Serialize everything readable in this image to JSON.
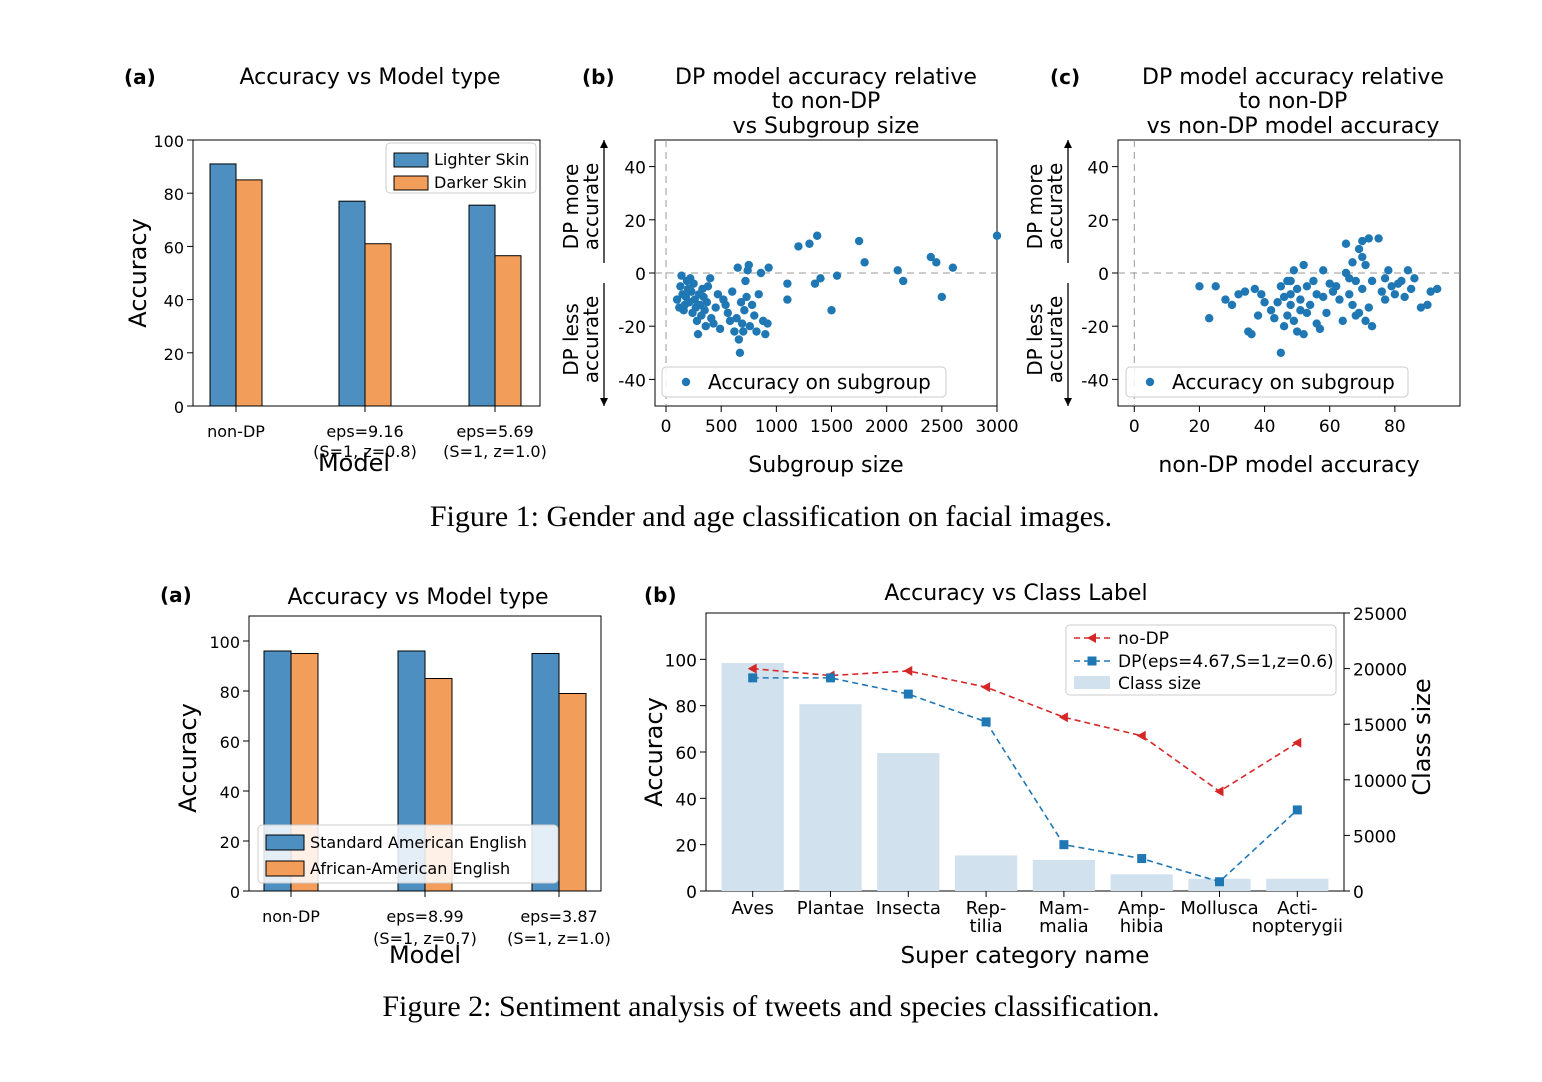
{
  "figure1": {
    "caption": "Figure 1: Gender and age classification on facial images.",
    "panel_a": {
      "tag": "(a)",
      "title": "Accuracy vs Model type"
    },
    "panel_b": {
      "tag": "(b)",
      "title_lines": [
        "DP model accuracy relative",
        "to non-DP",
        "vs Subgroup size"
      ]
    },
    "panel_c": {
      "tag": "(c)",
      "title_lines": [
        "DP model accuracy relative",
        "to non-DP",
        "vs non-DP model accuracy"
      ]
    }
  },
  "figure2": {
    "caption": "Figure 2: Sentiment analysis of tweets and species classification.",
    "panel_a": {
      "tag": "(a)",
      "title": "Accuracy vs Model type"
    },
    "panel_b": {
      "tag": "(b)",
      "title": "Accuracy vs Class Label"
    }
  },
  "colors": {
    "blue": "#4c8fc0",
    "orange": "#f39d5a",
    "scatter": "#1f77b4",
    "red": "#d62728",
    "dp_blue": "#1f77b4",
    "class_bar": "#d2e1ee"
  },
  "chart_data": [
    {
      "id": "fig1a",
      "type": "bar",
      "title": "Accuracy vs Model type",
      "xlabel": "Model",
      "ylabel": "Accuracy",
      "categories": [
        [
          "non-DP"
        ],
        [
          "eps=9.16",
          "(S=1, z=0.8)"
        ],
        [
          "eps=5.69",
          "(S=1, z=1.0)"
        ]
      ],
      "series": [
        {
          "name": "Lighter Skin",
          "values": [
            91,
            77,
            75.5
          ]
        },
        {
          "name": "Darker Skin",
          "values": [
            85,
            61,
            56.5
          ]
        }
      ],
      "ylim": [
        0,
        100
      ],
      "yticks": [
        0,
        20,
        40,
        60,
        80,
        100
      ],
      "legend": "top-right"
    },
    {
      "id": "fig1b",
      "type": "scatter",
      "xlabel": "Subgroup size",
      "ylabel_up": [
        "DP more",
        "accurate"
      ],
      "ylabel_down": [
        "DP less",
        "accurate"
      ],
      "xlim": [
        -100,
        3000
      ],
      "ylim": [
        -50,
        50
      ],
      "xticks": [
        0,
        500,
        1000,
        1500,
        2000,
        2500,
        3000
      ],
      "yticks": [
        -40,
        -20,
        0,
        20,
        40
      ],
      "legend": "lower-left",
      "series": [
        {
          "name": "Accuracy on subgroup",
          "points": [
            [
              100,
              -10
            ],
            [
              120,
              -13
            ],
            [
              130,
              -5
            ],
            [
              140,
              -1
            ],
            [
              150,
              -8
            ],
            [
              160,
              -14
            ],
            [
              170,
              -12
            ],
            [
              180,
              -9
            ],
            [
              190,
              -3
            ],
            [
              200,
              -6
            ],
            [
              210,
              -11
            ],
            [
              220,
              -2
            ],
            [
              230,
              -7
            ],
            [
              240,
              -15
            ],
            [
              250,
              -4
            ],
            [
              260,
              -10
            ],
            [
              270,
              -13
            ],
            [
              280,
              -18
            ],
            [
              290,
              -23
            ],
            [
              300,
              -8
            ],
            [
              310,
              -12
            ],
            [
              320,
              -16
            ],
            [
              330,
              -6
            ],
            [
              340,
              -9
            ],
            [
              350,
              -14
            ],
            [
              360,
              -20
            ],
            [
              370,
              -11
            ],
            [
              380,
              -5
            ],
            [
              400,
              -2
            ],
            [
              410,
              -17
            ],
            [
              430,
              -19
            ],
            [
              450,
              -13
            ],
            [
              470,
              -8
            ],
            [
              490,
              -21
            ],
            [
              520,
              -10
            ],
            [
              540,
              -12
            ],
            [
              560,
              -15
            ],
            [
              580,
              -18
            ],
            [
              600,
              -7
            ],
            [
              620,
              -22
            ],
            [
              640,
              -17
            ],
            [
              650,
              2
            ],
            [
              660,
              -25
            ],
            [
              670,
              -30
            ],
            [
              680,
              -11
            ],
            [
              690,
              -19
            ],
            [
              700,
              -22
            ],
            [
              710,
              -14
            ],
            [
              720,
              -3
            ],
            [
              730,
              -9
            ],
            [
              740,
              1
            ],
            [
              750,
              3
            ],
            [
              760,
              -20
            ],
            [
              780,
              -12
            ],
            [
              800,
              -16
            ],
            [
              820,
              -22
            ],
            [
              840,
              -8
            ],
            [
              860,
              0
            ],
            [
              880,
              -18
            ],
            [
              900,
              -23
            ],
            [
              920,
              -19
            ],
            [
              930,
              2
            ],
            [
              1100,
              -4
            ],
            [
              1100,
              -10
            ],
            [
              1200,
              10
            ],
            [
              1300,
              11
            ],
            [
              1350,
              -4
            ],
            [
              1370,
              14
            ],
            [
              1400,
              -2
            ],
            [
              1500,
              -14
            ],
            [
              1550,
              -1
            ],
            [
              1750,
              12
            ],
            [
              1800,
              4
            ],
            [
              2100,
              1
            ],
            [
              2150,
              -3
            ],
            [
              2400,
              6
            ],
            [
              2450,
              4
            ],
            [
              2500,
              -9
            ],
            [
              2600,
              2
            ],
            [
              3000,
              14
            ]
          ]
        }
      ]
    },
    {
      "id": "fig1c",
      "type": "scatter",
      "xlabel": "non-DP model accuracy",
      "ylabel_up": [
        "DP more",
        "accurate"
      ],
      "ylabel_down": [
        "DP less",
        "accurate"
      ],
      "xlim": [
        -5,
        100
      ],
      "ylim": [
        -50,
        50
      ],
      "xticks": [
        0,
        20,
        40,
        60,
        80
      ],
      "yticks": [
        -40,
        -20,
        0,
        20,
        40
      ],
      "legend": "lower-left",
      "series": [
        {
          "name": "Accuracy on subgroup",
          "points": [
            [
              20,
              -5
            ],
            [
              23,
              -17
            ],
            [
              25,
              -5
            ],
            [
              28,
              -10
            ],
            [
              30,
              -12
            ],
            [
              32,
              -8
            ],
            [
              34,
              -7
            ],
            [
              35,
              -22
            ],
            [
              36,
              -23
            ],
            [
              37,
              -6
            ],
            [
              38,
              -16
            ],
            [
              39,
              -8
            ],
            [
              40,
              -11
            ],
            [
              42,
              -14
            ],
            [
              43,
              -17
            ],
            [
              44,
              -11
            ],
            [
              45,
              -30
            ],
            [
              45,
              -5
            ],
            [
              46,
              -20
            ],
            [
              46,
              -9
            ],
            [
              47,
              -16
            ],
            [
              47,
              -3
            ],
            [
              48,
              -12
            ],
            [
              48,
              -8
            ],
            [
              48,
              -3
            ],
            [
              49,
              -18
            ],
            [
              49,
              1
            ],
            [
              50,
              -6
            ],
            [
              50,
              -22
            ],
            [
              51,
              -14
            ],
            [
              51,
              -10
            ],
            [
              52,
              -23
            ],
            [
              52,
              3
            ],
            [
              53,
              -5
            ],
            [
              53,
              -15
            ],
            [
              54,
              -12
            ],
            [
              55,
              -3
            ],
            [
              56,
              -8
            ],
            [
              56,
              -19
            ],
            [
              57,
              -21
            ],
            [
              58,
              -9
            ],
            [
              58,
              1
            ],
            [
              59,
              -15
            ],
            [
              60,
              -4
            ],
            [
              61,
              -7
            ],
            [
              62,
              -5
            ],
            [
              63,
              -10
            ],
            [
              64,
              -18
            ],
            [
              65,
              0
            ],
            [
              65,
              11
            ],
            [
              66,
              -2
            ],
            [
              66,
              -8
            ],
            [
              67,
              -12
            ],
            [
              67,
              4
            ],
            [
              68,
              -16
            ],
            [
              68,
              -3
            ],
            [
              69,
              9
            ],
            [
              69,
              -15
            ],
            [
              70,
              6
            ],
            [
              70,
              -6
            ],
            [
              70,
              12
            ],
            [
              71,
              -18
            ],
            [
              71,
              3
            ],
            [
              72,
              -13
            ],
            [
              72,
              13
            ],
            [
              73,
              -20
            ],
            [
              73,
              -3
            ],
            [
              75,
              13
            ],
            [
              76,
              -7
            ],
            [
              77,
              -2
            ],
            [
              77,
              -10
            ],
            [
              78,
              1
            ],
            [
              79,
              -5
            ],
            [
              80,
              -8
            ],
            [
              81,
              -4
            ],
            [
              82,
              -3
            ],
            [
              83,
              -9
            ],
            [
              84,
              1
            ],
            [
              85,
              -6
            ],
            [
              86,
              -2
            ],
            [
              88,
              -13
            ],
            [
              90,
              -12
            ],
            [
              91,
              -7
            ],
            [
              93,
              -6
            ]
          ]
        }
      ]
    },
    {
      "id": "fig2a",
      "type": "bar",
      "title": "Accuracy vs Model type",
      "xlabel": "Model",
      "ylabel": "Accuracy",
      "categories": [
        [
          "non-DP"
        ],
        [
          "eps=8.99",
          "(S=1, z=0.7)"
        ],
        [
          "eps=3.87",
          "(S=1, z=1.0)"
        ]
      ],
      "series": [
        {
          "name": "Standard American English",
          "values": [
            96,
            96,
            95
          ]
        },
        {
          "name": "African-American English",
          "values": [
            95,
            85,
            79
          ]
        }
      ],
      "ylim": [
        0,
        110
      ],
      "yticks": [
        0,
        20,
        40,
        60,
        80,
        100
      ],
      "legend": "lower-left"
    },
    {
      "id": "fig2b",
      "type": "line",
      "title": "Accuracy vs Class Label",
      "xlabel": "Super category name",
      "ylabel": "Accuracy",
      "ylabel_right": "Class size",
      "categories": [
        [
          "Aves"
        ],
        [
          "Plantae"
        ],
        [
          "Insecta"
        ],
        [
          "Rep-",
          "tilia"
        ],
        [
          "Mam-",
          "malia"
        ],
        [
          "Amp-",
          "hibia"
        ],
        [
          "Mollusca"
        ],
        [
          "Acti-",
          "nopterygii"
        ]
      ],
      "series": [
        {
          "name": "no-DP",
          "values": [
            96,
            93,
            95,
            88,
            75,
            67,
            43,
            64
          ]
        },
        {
          "name": "DP(eps=4.67,S=1,z=0.6)",
          "values": [
            92,
            92,
            85,
            73,
            20,
            14,
            4,
            35
          ]
        }
      ],
      "class_size": {
        "name": "Class size",
        "values": [
          20500,
          16800,
          12400,
          3200,
          2800,
          1500,
          1100,
          1100
        ]
      },
      "ylim": [
        0,
        120
      ],
      "yticks": [
        0,
        20,
        40,
        60,
        80,
        100
      ],
      "y2lim": [
        0,
        25000
      ],
      "y2ticks": [
        0,
        5000,
        10000,
        15000,
        20000,
        25000
      ],
      "legend": "top-right"
    }
  ]
}
